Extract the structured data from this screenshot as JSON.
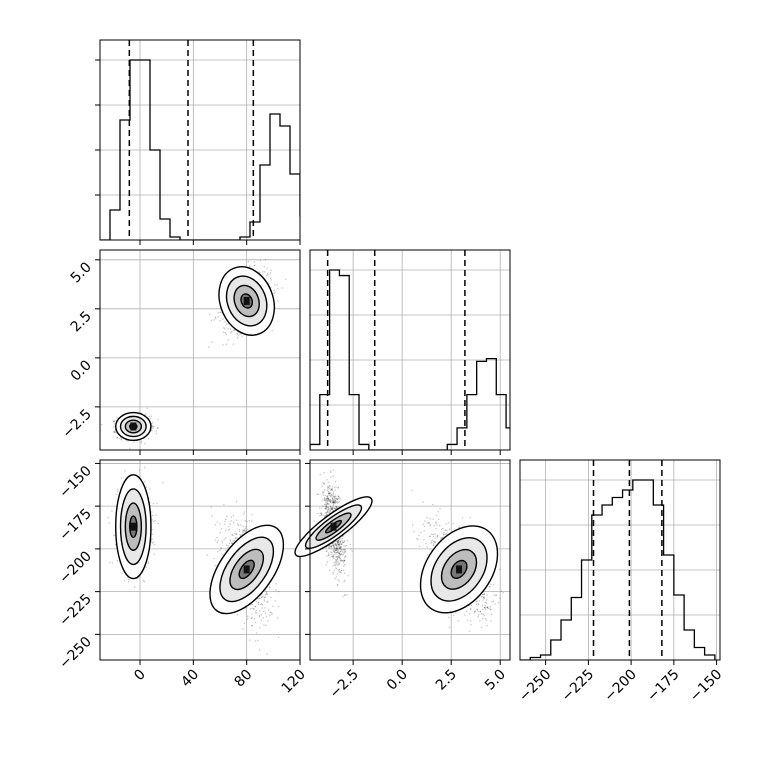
{
  "chart_data": {
    "type": "corner",
    "grid": true,
    "parameters": [
      {
        "ticks": [
          0,
          40,
          80,
          120
        ],
        "range": [
          -30,
          120
        ]
      },
      {
        "ticks": [
          -2.5,
          0.0,
          2.5,
          5.0
        ],
        "range": [
          -4.7,
          5.5
        ]
      },
      {
        "ticks": [
          -250,
          -225,
          -200,
          -175,
          -150
        ],
        "range": [
          -265,
          -148
        ]
      }
    ],
    "tick_labels": {
      "p0": [
        "0",
        "40",
        "80",
        "120"
      ],
      "p1": [
        "−2.5",
        "0.0",
        "2.5",
        "5.0"
      ],
      "p2": [
        "−250",
        "−225",
        "−200",
        "−175",
        "−150"
      ]
    },
    "quantiles": {
      "p0": [
        -8,
        36,
        85
      ],
      "p1": [
        -3.8,
        -1.4,
        3.2
      ],
      "p2": [
        -222,
        -201,
        -182
      ]
    },
    "histograms": {
      "p0": {
        "edges_start": -30,
        "bin_width": 7.5,
        "counts": [
          0,
          10,
          40,
          60,
          60,
          30,
          7,
          1,
          0,
          0,
          0,
          0,
          0,
          0,
          1,
          6,
          25,
          42,
          38,
          22,
          8,
          2
        ]
      },
      "p1": {
        "edges_start": -4.7,
        "bin_width": 0.5,
        "counts": [
          2,
          20,
          65,
          63,
          20,
          2,
          0,
          0,
          0,
          0,
          0,
          0,
          0,
          0,
          2,
          8,
          20,
          32,
          33,
          20,
          8,
          2,
          0
        ]
      },
      "p2": {
        "edges_start": -265,
        "bin_width": 6,
        "counts": [
          0,
          1,
          2,
          8,
          16,
          25,
          40,
          58,
          62,
          65,
          68,
          72,
          72,
          62,
          42,
          26,
          12,
          5,
          2
        ]
      }
    },
    "clusters": [
      {
        "center": {
          "p0": -5,
          "p1": -3.5,
          "p2": -187
        },
        "spread": {
          "p0": 6,
          "p1": 0.28,
          "p2": 12
        },
        "corr": {
          "p0p1": 0.0,
          "p0p2": 0.0,
          "p1p2": -0.45
        },
        "weight": 0.5
      },
      {
        "center": {
          "p0": 80,
          "p1": 2.9,
          "p2": -212
        },
        "spread": {
          "p0": 9,
          "p1": 0.75,
          "p2": 13
        },
        "corr": {
          "p0p1": 0.35,
          "p0p2": -0.45,
          "p1p2": -0.55
        },
        "weight": 0.5
      }
    ]
  }
}
